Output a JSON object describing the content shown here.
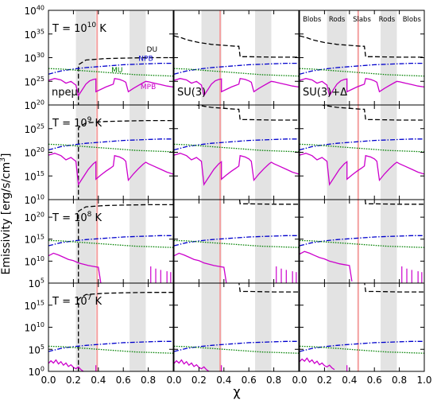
{
  "chart_data": {
    "type": "line",
    "ylabel_main": "Emissivity [erg/s/cm",
    "ylabel_sup": "3",
    "ylabel_end": "]",
    "xlabel": "χ",
    "xlim": [
      0.0,
      1.0
    ],
    "x_tick_labels": [
      "0.0",
      "0.2",
      "0.4",
      "0.6",
      "0.8"
    ],
    "x_tick_labels_last": [
      "0.0",
      "0.2",
      "0.4",
      "0.6",
      "0.8",
      "1.0"
    ],
    "x_ticks": [
      0.0,
      0.2,
      0.4,
      0.6,
      0.8,
      1.0
    ],
    "columns": [
      {
        "label_main": "npe",
        "label_sym": "μ",
        "red_line_x": 0.39
      },
      {
        "label_main": "SU(3)",
        "label_sym": "",
        "red_line_x": 0.37
      },
      {
        "label_main": "SU(3)+",
        "label_sym": "Δ",
        "red_line_x": 0.47
      }
    ],
    "gray_bands": [
      [
        0.22,
        0.38
      ],
      [
        0.65,
        0.78
      ]
    ],
    "phase_labels": [
      {
        "text": "Blobs",
        "x": 0.1
      },
      {
        "text": "Rods",
        "x": 0.3
      },
      {
        "text": "Slabs",
        "x": 0.5
      },
      {
        "text": "Rods",
        "x": 0.7
      },
      {
        "text": "Blobs",
        "x": 0.9
      }
    ],
    "rows": [
      {
        "temp_base": "T = 10",
        "temp_exp": "10",
        "temp_unit": " K",
        "ylim_exp": [
          20,
          40
        ],
        "ytick_base": "10",
        "ytick_exps": [
          "20",
          "25",
          "30",
          "35",
          "40"
        ]
      },
      {
        "temp_base": "T = 10",
        "temp_exp": "9",
        "temp_unit": " K",
        "ylim_exp": [
          10,
          30
        ],
        "ytick_base": "10",
        "ytick_exps": [
          "10",
          "15",
          "20",
          "25"
        ]
      },
      {
        "temp_base": "T = 10",
        "temp_exp": "8",
        "temp_unit": " K",
        "ylim_exp": [
          5,
          24
        ],
        "ytick_base": "10",
        "ytick_exps": [
          "5",
          "10",
          "15",
          "20"
        ]
      },
      {
        "temp_base": "T = 10",
        "temp_exp": "7",
        "temp_unit": " K",
        "ylim_exp": [
          0,
          20
        ],
        "ytick_base": "10",
        "ytick_exps": [
          "0",
          "5",
          "10",
          "15"
        ]
      }
    ],
    "series": [
      {
        "name": "DU",
        "color": "#000000",
        "dash": "6,3",
        "label_x": 0.83,
        "label_row": 0,
        "label_col": 0
      },
      {
        "name": "NPB",
        "color": "#0000cc",
        "dash": "6,2,1.5,2",
        "label_x": 0.8,
        "label_row": 0,
        "label_col": 0
      },
      {
        "name": "MU",
        "color": "#008000",
        "dash": "1.5,1.5",
        "label_x": 0.55,
        "label_row": 0,
        "label_col": 0
      },
      {
        "name": "MPB",
        "color": "#cc00cc",
        "dash": "",
        "label_x": 0.8,
        "label_row": 0,
        "label_col": 0
      }
    ],
    "curves": {
      "DU_col0": [
        [
          0.0,
          -99
        ],
        [
          0.22,
          -99
        ],
        [
          0.24,
          28.5
        ],
        [
          0.3,
          29.5
        ],
        [
          0.45,
          29.8
        ],
        [
          0.6,
          29.9
        ],
        [
          0.8,
          30.0
        ],
        [
          1.0,
          30.0
        ]
      ],
      "DU_col12": [
        [
          0.0,
          34.6
        ],
        [
          0.06,
          34.2
        ],
        [
          0.1,
          33.8
        ],
        [
          0.15,
          33.5
        ],
        [
          0.2,
          33.2
        ],
        [
          0.25,
          33.0
        ],
        [
          0.3,
          32.8
        ],
        [
          0.4,
          32.6
        ],
        [
          0.5,
          32.4
        ],
        [
          0.52,
          32.4
        ],
        [
          0.53,
          30.2
        ],
        [
          0.6,
          30.2
        ],
        [
          0.8,
          30.1
        ],
        [
          1.0,
          30.1
        ]
      ],
      "NPB": [
        [
          0.0,
          26.5
        ],
        [
          0.1,
          27.2
        ],
        [
          0.2,
          27.6
        ],
        [
          0.3,
          27.9
        ],
        [
          0.4,
          28.1
        ],
        [
          0.5,
          28.3
        ],
        [
          0.6,
          28.5
        ],
        [
          0.7,
          28.6
        ],
        [
          0.8,
          28.7
        ],
        [
          0.9,
          28.8
        ],
        [
          1.0,
          28.8
        ]
      ],
      "MU": [
        [
          0.0,
          27.7
        ],
        [
          0.1,
          27.6
        ],
        [
          0.2,
          27.4
        ],
        [
          0.3,
          27.2
        ],
        [
          0.4,
          27.0
        ],
        [
          0.5,
          26.8
        ],
        [
          0.6,
          26.6
        ],
        [
          0.7,
          26.4
        ],
        [
          0.8,
          26.3
        ],
        [
          0.9,
          26.2
        ],
        [
          1.0,
          26.1
        ]
      ],
      "MPB_hot": [
        [
          0.0,
          25.2
        ],
        [
          0.05,
          25.6
        ],
        [
          0.1,
          25.3
        ],
        [
          0.14,
          24.6
        ],
        [
          0.18,
          25.0
        ],
        [
          0.22,
          24.2
        ],
        [
          0.24,
          22.0
        ],
        [
          0.27,
          23.2
        ],
        [
          0.3,
          24.4
        ],
        [
          0.33,
          25.1
        ],
        [
          0.36,
          25.4
        ],
        [
          0.38,
          25.5
        ],
        [
          0.38,
          22.8
        ],
        [
          0.42,
          23.3
        ],
        [
          0.46,
          23.8
        ],
        [
          0.5,
          24.2
        ],
        [
          0.52,
          24.4
        ],
        [
          0.53,
          25.6
        ],
        [
          0.57,
          25.4
        ],
        [
          0.6,
          25.1
        ],
        [
          0.62,
          24.8
        ],
        [
          0.64,
          22.8
        ],
        [
          0.68,
          23.5
        ],
        [
          0.72,
          24.1
        ],
        [
          0.76,
          24.7
        ],
        [
          0.78,
          25.0
        ],
        [
          0.8,
          24.9
        ],
        [
          0.85,
          24.6
        ],
        [
          0.9,
          24.3
        ],
        [
          0.95,
          24.0
        ],
        [
          1.0,
          23.8
        ]
      ],
      "MPB_warm": [
        [
          0.0,
          19.4
        ],
        [
          0.05,
          19.8
        ],
        [
          0.1,
          19.3
        ],
        [
          0.14,
          18.4
        ],
        [
          0.18,
          18.9
        ],
        [
          0.22,
          18.1
        ],
        [
          0.24,
          13.2
        ],
        [
          0.28,
          14.8
        ],
        [
          0.32,
          16.4
        ],
        [
          0.36,
          17.6
        ],
        [
          0.38,
          18.0
        ],
        [
          0.38,
          14.3
        ],
        [
          0.42,
          15.2
        ],
        [
          0.46,
          16.0
        ],
        [
          0.5,
          16.7
        ],
        [
          0.52,
          17.1
        ],
        [
          0.53,
          19.3
        ],
        [
          0.57,
          19.0
        ],
        [
          0.6,
          18.6
        ],
        [
          0.62,
          18.1
        ],
        [
          0.64,
          14.1
        ],
        [
          0.68,
          15.4
        ],
        [
          0.72,
          16.5
        ],
        [
          0.76,
          17.5
        ],
        [
          0.78,
          17.9
        ],
        [
          0.8,
          17.6
        ],
        [
          0.85,
          17.0
        ],
        [
          0.9,
          16.4
        ],
        [
          0.95,
          15.8
        ],
        [
          1.0,
          15.4
        ]
      ],
      "MPB_cool": [
        [
          0.0,
          11.2
        ],
        [
          0.04,
          11.8
        ],
        [
          0.08,
          11.4
        ],
        [
          0.12,
          10.9
        ],
        [
          0.16,
          10.4
        ],
        [
          0.2,
          10.1
        ],
        [
          0.24,
          9.6
        ],
        [
          0.28,
          9.3
        ],
        [
          0.32,
          9.0
        ],
        [
          0.36,
          8.8
        ],
        [
          0.4,
          8.6
        ],
        [
          0.42,
          5.0
        ]
      ],
      "MPB_cold": [
        [
          0.0,
          1.8
        ],
        [
          0.02,
          2.4
        ],
        [
          0.04,
          1.9
        ],
        [
          0.06,
          2.6
        ],
        [
          0.08,
          1.7
        ],
        [
          0.1,
          2.2
        ],
        [
          0.12,
          1.4
        ],
        [
          0.14,
          1.9
        ],
        [
          0.16,
          1.1
        ],
        [
          0.18,
          1.5
        ],
        [
          0.2,
          0.9
        ],
        [
          0.22,
          0.6
        ],
        [
          0.24,
          1.0
        ],
        [
          0.26,
          0.4
        ],
        [
          0.28,
          0.0
        ]
      ]
    }
  }
}
